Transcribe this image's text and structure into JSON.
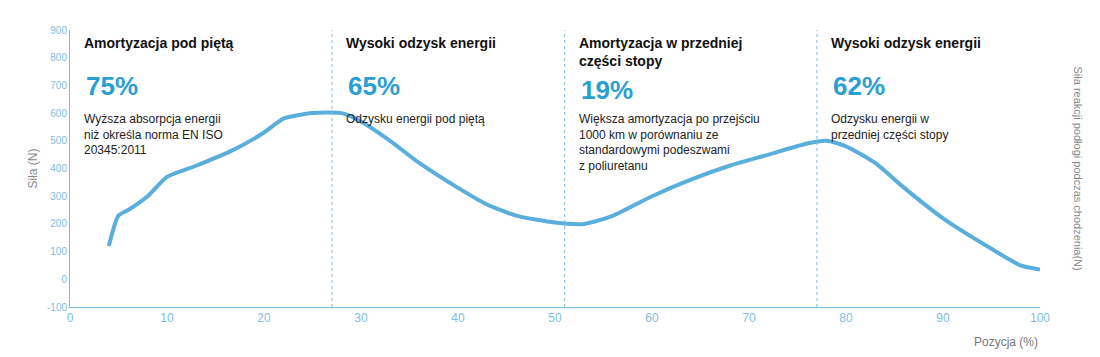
{
  "chart_data": {
    "type": "line",
    "x_label": "Pozycja (%)",
    "y_label": "Siła (N)",
    "y2_label": "Siła reakcji podłogi podczas chodzenia(N)",
    "x": [
      4,
      5,
      6,
      8,
      10,
      13,
      17,
      20,
      22,
      25,
      28,
      30,
      33,
      36,
      40,
      43,
      46,
      50,
      53,
      56,
      60,
      64,
      68,
      72,
      76,
      78,
      80,
      83,
      86,
      90,
      95,
      98,
      100
    ],
    "values": [
      120,
      230,
      250,
      300,
      370,
      410,
      470,
      530,
      580,
      600,
      600,
      570,
      500,
      420,
      330,
      270,
      230,
      205,
      200,
      230,
      300,
      360,
      410,
      450,
      490,
      500,
      480,
      420,
      330,
      220,
      110,
      50,
      35
    ],
    "color": "#5aaedc",
    "xlim": [
      0,
      100
    ],
    "ylim": [
      -100,
      900
    ],
    "xticks": [
      0,
      10,
      20,
      30,
      40,
      50,
      60,
      70,
      80,
      90,
      100
    ],
    "yticks": [
      -100,
      0,
      100,
      200,
      300,
      400,
      500,
      600,
      700,
      800,
      900
    ],
    "grid": false,
    "dividers": [
      27,
      51,
      77
    ],
    "sections": [
      {
        "heading": [
          "Amortyzacja pod piętą"
        ],
        "figure": "75%",
        "description": [
          "Wyższa absorpcja energii",
          "niż określa norma EN ISO",
          "20345:2011"
        ]
      },
      {
        "heading": [
          "Wysoki odzysk energii"
        ],
        "figure": "65%",
        "description": [
          "Odzysku energii pod piętą"
        ]
      },
      {
        "heading": [
          "Amortyzacja w przedniej",
          "części stopy"
        ],
        "figure": "19%",
        "description": [
          "Większa amortyzacja po przejściu",
          "1000 km w porównaniu ze",
          "standardowymi podeszwami",
          "z poliuretanu"
        ]
      },
      {
        "heading": [
          "Wysoki odzysk energii"
        ],
        "figure": "62%",
        "description": [
          "Odzysku energii w",
          "przedniej części stopy"
        ]
      }
    ]
  }
}
